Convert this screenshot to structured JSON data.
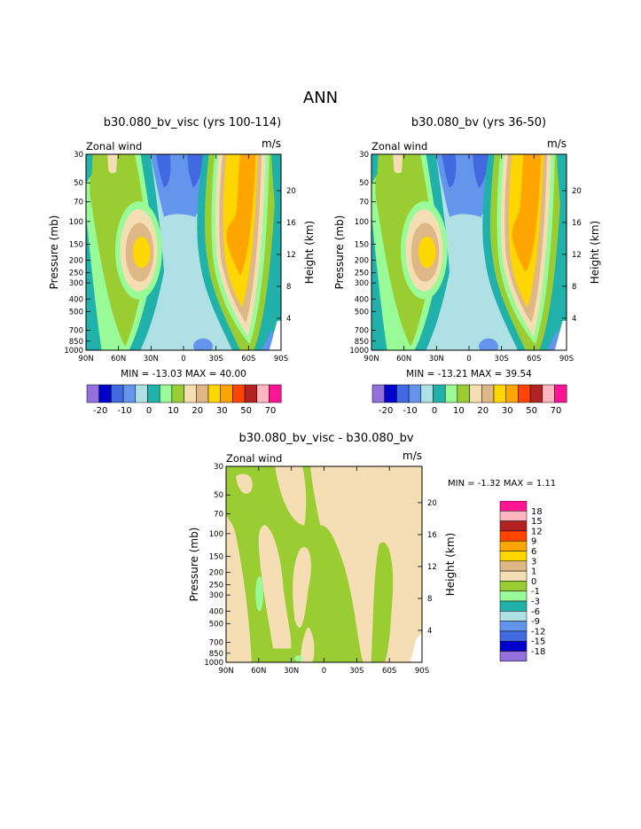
{
  "main_title": "ANN",
  "chart_data": [
    {
      "type": "heatmap",
      "title": "b30.080_bv_visc (yrs 100-114)",
      "left_label": "Zonal wind",
      "units": "m/s",
      "xlabel": "",
      "ylabel": "Pressure (mb)",
      "y2label": "Height (km)",
      "x_ticks": [
        "90N",
        "60N",
        "30N",
        "0",
        "30S",
        "60S",
        "90S"
      ],
      "y_ticks": [
        "30",
        "50",
        "70",
        "100",
        "150",
        "200",
        "250",
        "300",
        "400",
        "500",
        "700",
        "850",
        "1000"
      ],
      "y2_ticks": [
        "20",
        "16",
        "12",
        "8",
        "4"
      ],
      "stats": "MIN = -13.03   MAX =  40.00",
      "min": -13.03,
      "max": 40.0
    },
    {
      "type": "heatmap",
      "title": "b30.080_bv (yrs 36-50)",
      "left_label": "Zonal wind",
      "units": "m/s",
      "xlabel": "",
      "ylabel": "Pressure (mb)",
      "y2label": "Height (km)",
      "x_ticks": [
        "90N",
        "60N",
        "30N",
        "0",
        "30S",
        "60S",
        "90S"
      ],
      "y_ticks": [
        "30",
        "50",
        "70",
        "100",
        "150",
        "200",
        "250",
        "300",
        "400",
        "500",
        "700",
        "850",
        "1000"
      ],
      "y2_ticks": [
        "20",
        "16",
        "12",
        "8",
        "4"
      ],
      "stats": "MIN = -13.21   MAX =  39.54",
      "min": -13.21,
      "max": 39.54
    },
    {
      "type": "heatmap",
      "title": "b30.080_bv_visc - b30.080_bv",
      "left_label": "Zonal wind",
      "units": "m/s",
      "xlabel": "",
      "ylabel": "Pressure (mb)",
      "y2label": "Height (km)",
      "x_ticks": [
        "90N",
        "60N",
        "30N",
        "0",
        "30S",
        "60S",
        "90S"
      ],
      "y_ticks": [
        "30",
        "50",
        "70",
        "100",
        "150",
        "200",
        "250",
        "300",
        "400",
        "500",
        "700",
        "850",
        "1000"
      ],
      "y2_ticks": [
        "20",
        "16",
        "12",
        "8",
        "4"
      ],
      "stats": "MIN =  -1.32   MAX =   1.11",
      "min": -1.32,
      "max": 1.11
    }
  ],
  "colorbar_top": {
    "labels": [
      "-20",
      "-10",
      "0",
      "10",
      "20",
      "30",
      "50",
      "70"
    ],
    "colors": [
      "#9370DB",
      "#0000CD",
      "#4169E1",
      "#6495ED",
      "#AFE0E6",
      "#20B2AA",
      "#98FB98",
      "#9ACD32",
      "#F5DEB3",
      "#DEB887",
      "#FFD700",
      "#FFA500",
      "#FF4500",
      "#B22222",
      "#FFB6C1",
      "#FF1493"
    ]
  },
  "colorbar_diff": {
    "labels": [
      "18",
      "15",
      "12",
      "9",
      "6",
      "3",
      "1",
      "0",
      "-1",
      "-3",
      "-6",
      "-9",
      "-12",
      "-15",
      "-18"
    ],
    "colors": [
      "#FF1493",
      "#FFB6C1",
      "#B22222",
      "#FF4500",
      "#FFA500",
      "#FFD700",
      "#DEB887",
      "#F5DEB3",
      "#9ACD32",
      "#98FB98",
      "#20B2AA",
      "#AFE0E6",
      "#6495ED",
      "#4169E1",
      "#0000CD",
      "#9370DB"
    ]
  },
  "colors": {
    "lightblue": "#AFE0E6",
    "teal": "#20B2AA",
    "lightgreen": "#98FB98",
    "green": "#9ACD32",
    "wheat": "#F5DEB3",
    "tan": "#DEB887",
    "gold": "#FFD700",
    "orange": "#FFA500",
    "cornflower": "#6495ED",
    "royal": "#4169E1"
  }
}
